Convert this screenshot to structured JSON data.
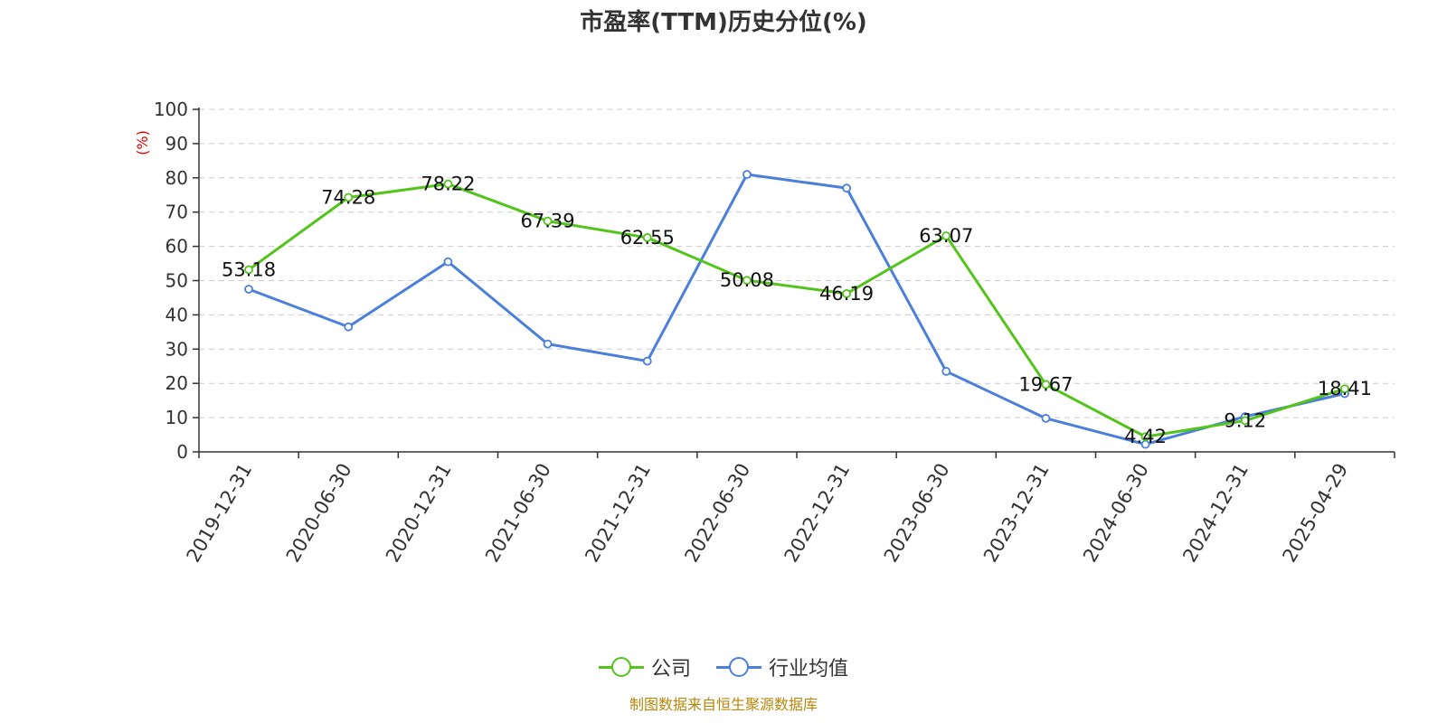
{
  "chart_data": {
    "type": "line",
    "title": "市盈率(TTM)历史分位(%)",
    "ylabel": "(%)",
    "ylim": [
      0,
      100
    ],
    "yticks": [
      0,
      10,
      20,
      30,
      40,
      50,
      60,
      70,
      80,
      90,
      100
    ],
    "categories": [
      "2019-12-31",
      "2020-06-30",
      "2020-12-31",
      "2021-06-30",
      "2021-12-31",
      "2022-06-30",
      "2022-12-31",
      "2023-06-30",
      "2023-12-31",
      "2024-06-30",
      "2024-12-31",
      "2025-04-29"
    ],
    "grid": true,
    "legend": "bottom-center",
    "series": [
      {
        "name": "公司",
        "color": "#52c41a",
        "values": [
          53.18,
          74.28,
          78.22,
          67.39,
          62.55,
          50.08,
          46.19,
          63.07,
          19.67,
          4.42,
          9.12,
          18.41
        ],
        "labels": [
          "53.18",
          "74.28",
          "78.22",
          "67.39",
          "62.55",
          "50.08",
          "46.19",
          "63.07",
          "19.67",
          "4.42",
          "9.12",
          "18.41"
        ]
      },
      {
        "name": "行业均值",
        "color": "#4a7fdb",
        "values": [
          47.5,
          36.5,
          55.5,
          31.5,
          26.5,
          81.0,
          77.0,
          23.5,
          9.8,
          2.2,
          10.3,
          17.0
        ]
      }
    ]
  },
  "source": "制图数据来自恒生聚源数据库"
}
